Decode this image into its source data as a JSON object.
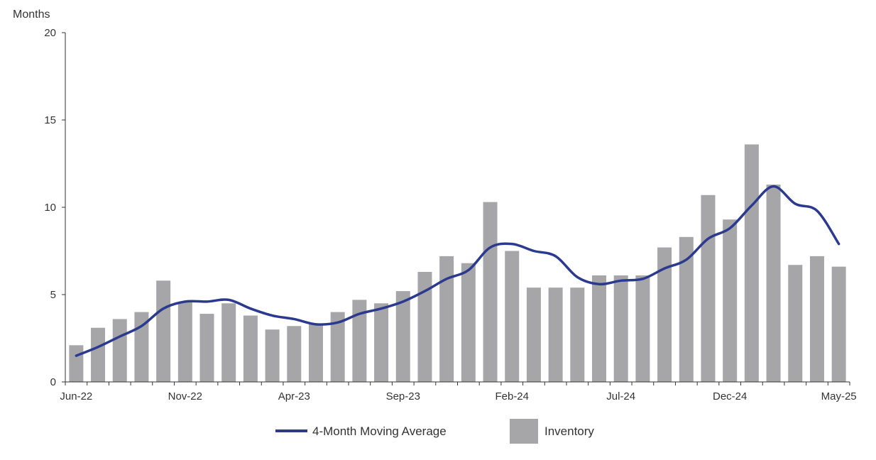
{
  "chart_data": {
    "type": "bar",
    "ylabel": "Months",
    "ylim": [
      0,
      20
    ],
    "yticks": [
      0,
      5,
      10,
      15,
      20
    ],
    "grid": false,
    "legend_position": "bottom",
    "categories": [
      "Jun-22",
      "Jul-22",
      "Aug-22",
      "Sep-22",
      "Oct-22",
      "Nov-22",
      "Dec-22",
      "Jan-23",
      "Feb-23",
      "Mar-23",
      "Apr-23",
      "May-23",
      "Jun-23",
      "Jul-23",
      "Aug-23",
      "Sep-23",
      "Oct-23",
      "Nov-23",
      "Dec-23",
      "Jan-24",
      "Feb-24",
      "Mar-24",
      "Apr-24",
      "May-24",
      "Jun-24",
      "Jul-24",
      "Aug-24",
      "Sep-24",
      "Oct-24",
      "Nov-24",
      "Dec-24",
      "Jan-25",
      "Feb-25",
      "Mar-25",
      "Apr-25",
      "May-25"
    ],
    "x_tick_labels": [
      "Jun-22",
      "Nov-22",
      "Apr-23",
      "Sep-23",
      "Feb-24",
      "Jul-24",
      "Dec-24",
      "May-25"
    ],
    "series": [
      {
        "name": "Inventory",
        "type": "bar",
        "color": "#a6a6a9",
        "values": [
          2.1,
          3.1,
          3.6,
          4.0,
          5.8,
          4.6,
          3.9,
          4.5,
          3.8,
          3.0,
          3.2,
          3.3,
          4.0,
          4.7,
          4.5,
          5.2,
          6.3,
          7.2,
          6.8,
          10.3,
          7.5,
          5.4,
          5.4,
          5.4,
          6.1,
          6.1,
          6.1,
          7.7,
          8.3,
          10.7,
          9.3,
          13.6,
          11.3,
          6.7,
          7.2,
          6.6
        ]
      },
      {
        "name": "4-Month Moving Average",
        "type": "line",
        "color": "#2b3a8f",
        "values": [
          1.5,
          2.0,
          2.6,
          3.2,
          4.2,
          4.6,
          4.6,
          4.7,
          4.2,
          3.8,
          3.6,
          3.3,
          3.4,
          3.9,
          4.2,
          4.6,
          5.2,
          5.9,
          6.4,
          7.7,
          7.9,
          7.5,
          7.2,
          6.0,
          5.6,
          5.8,
          5.9,
          6.5,
          7.0,
          8.2,
          8.8,
          10.1,
          11.2,
          10.2,
          9.8,
          7.9
        ]
      }
    ]
  }
}
